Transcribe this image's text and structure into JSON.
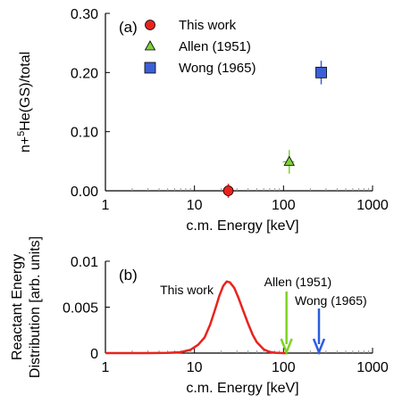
{
  "chart_data": [
    {
      "type": "scatter",
      "panel_label": "(a)",
      "xlabel": "c.m.  Energy [keV]",
      "ylabel_parts": [
        "n+",
        "5",
        "He(GS)/total"
      ],
      "xscale": "log",
      "xlim": [
        1,
        1000
      ],
      "ylim": [
        0,
        0.3
      ],
      "xticks": [
        1,
        10,
        100,
        1000
      ],
      "xtick_labels": [
        "1",
        "10",
        "100",
        "1000"
      ],
      "yticks": [
        0,
        0.1,
        0.2,
        0.3
      ],
      "ytick_labels": [
        "0.00",
        "0.10",
        "0.20",
        "0.30"
      ],
      "grid": false,
      "legend_position": "top-left",
      "series": [
        {
          "name": "This work",
          "marker": "circle",
          "color": "#e8231e",
          "points": [
            {
              "x": 24,
              "y": 0.0,
              "yerr": 0.012
            }
          ]
        },
        {
          "name": "Allen (1951)",
          "marker": "triangle",
          "color": "#7ed03a",
          "points": [
            {
              "x": 116,
              "y": 0.049,
              "yerr": 0.02,
              "xerr": [
                98,
                132
              ]
            }
          ]
        },
        {
          "name": "Wong (1965)",
          "marker": "square",
          "color": "#3b5fd6",
          "points": [
            {
              "x": 265,
              "y": 0.2,
              "yerr": 0.02
            }
          ]
        }
      ]
    },
    {
      "type": "line",
      "panel_label": "(b)",
      "xlabel": "c.m.  Energy [keV]",
      "ylabel_lines": [
        "Reactant Energy",
        "Distribution [arb. units]"
      ],
      "xscale": "log",
      "xlim": [
        1,
        1000
      ],
      "ylim": [
        0,
        0.01
      ],
      "xticks": [
        1,
        10,
        100,
        1000
      ],
      "xtick_labels": [
        "1",
        "10",
        "100",
        "1000"
      ],
      "yticks": [
        0,
        0.005,
        0.01
      ],
      "ytick_labels": [
        "0",
        "0.005",
        "0.01"
      ],
      "grid": false,
      "series": [
        {
          "name": "This work",
          "color": "#e8231e",
          "x": [
            1,
            3,
            5,
            7,
            9,
            11,
            13,
            15,
            17,
            19,
            21,
            23,
            25,
            28,
            31,
            35,
            40,
            45,
            50,
            60,
            70,
            80,
            90,
            100,
            110
          ],
          "y": [
            0,
            0,
            2e-05,
            0.0001,
            0.00035,
            0.0009,
            0.0017,
            0.0031,
            0.0047,
            0.0062,
            0.0073,
            0.0078,
            0.0077,
            0.0071,
            0.0061,
            0.0047,
            0.0032,
            0.002,
            0.0012,
            0.0004,
            0.00012,
            4e-05,
            1e-05,
            0,
            0
          ]
        }
      ],
      "arrows": [
        {
          "label": "Allen (1951)",
          "x": 108,
          "color": "#7ed321"
        },
        {
          "label": "Wong (1965)",
          "x": 250,
          "color": "#2b5ce0"
        }
      ]
    }
  ]
}
